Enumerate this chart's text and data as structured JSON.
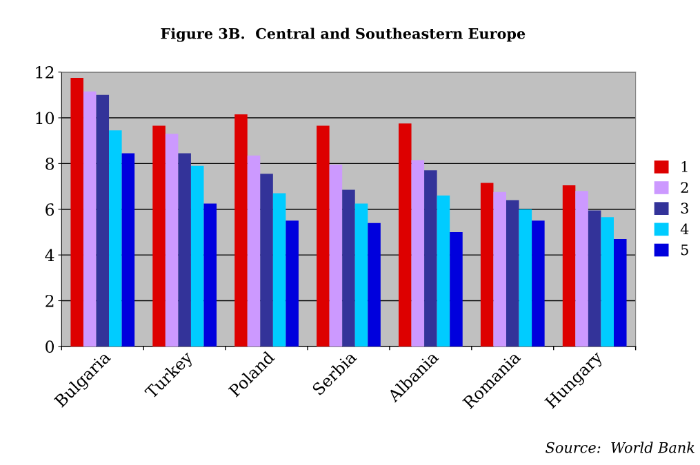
{
  "chart_data": {
    "type": "bar",
    "title": "Figure 3B.  Central and Southeastern Europe",
    "categories": [
      "Bulgaria",
      "Turkey",
      "Poland",
      "Serbia",
      "Albania",
      "Romania",
      "Hungary"
    ],
    "series": [
      {
        "name": "1",
        "color": "#dd0000",
        "values": [
          11.75,
          9.65,
          10.15,
          9.65,
          9.75,
          7.15,
          7.05
        ]
      },
      {
        "name": "2",
        "color": "#cc99ff",
        "values": [
          11.15,
          9.3,
          8.35,
          7.95,
          8.15,
          6.75,
          6.8
        ]
      },
      {
        "name": "3",
        "color": "#333399",
        "values": [
          11.0,
          8.45,
          7.55,
          6.85,
          7.7,
          6.4,
          5.95
        ]
      },
      {
        "name": "4",
        "color": "#00ccff",
        "values": [
          9.45,
          7.9,
          6.7,
          6.25,
          6.6,
          6.0,
          5.65
        ]
      },
      {
        "name": "5",
        "color": "#0000dd",
        "values": [
          8.45,
          6.25,
          5.5,
          5.4,
          5.0,
          5.5,
          4.7
        ]
      }
    ],
    "ylim": [
      0,
      12
    ],
    "yticks": [
      0,
      2,
      4,
      6,
      8,
      10,
      12
    ],
    "grid": "y",
    "legend": "right",
    "annotations": [
      "Source:  World Bank"
    ]
  }
}
